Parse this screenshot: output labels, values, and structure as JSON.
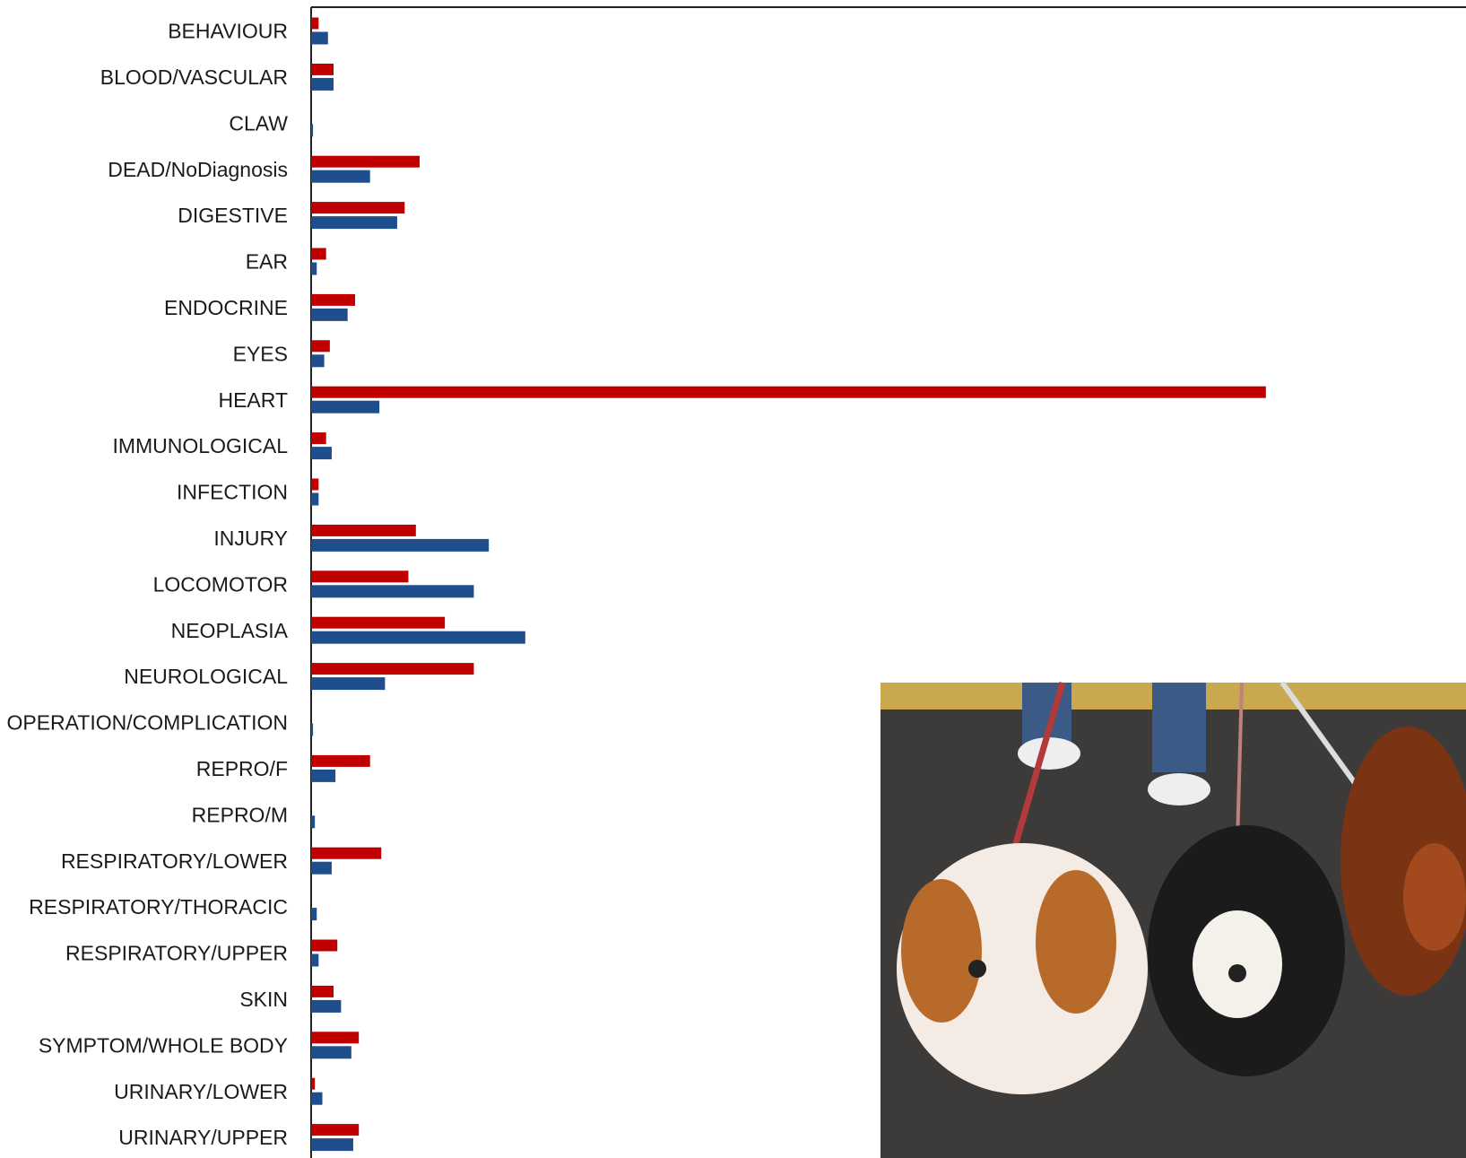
{
  "chart_data": {
    "type": "bar",
    "orientation": "horizontal",
    "categories": [
      "BEHAVIOUR",
      "BLOOD/VASCULAR",
      "CLAW",
      "DEAD/NoDiagnosis",
      "DIGESTIVE",
      "EAR",
      "ENDOCRINE",
      "EYES",
      "HEART",
      "IMMUNOLOGICAL",
      "INFECTION",
      "INJURY",
      "LOCOMOTOR",
      "NEOPLASIA",
      "NEUROLOGICAL",
      "OPERATION/COMPLICATION",
      "REPRO/F",
      "REPRO/M",
      "RESPIRATORY/LOWER",
      "RESPIRATORY/THORACIC",
      "RESPIRATORY/UPPER",
      "SKIN",
      "SYMPTOM/WHOLE BODY",
      "URINARY/LOWER",
      "URINARY/UPPER"
    ],
    "series": [
      {
        "color": "#c00000",
        "values": [
          8,
          24,
          0,
          116,
          100,
          16,
          47,
          20,
          1021,
          16,
          8,
          112,
          104,
          143,
          174,
          0,
          63,
          0,
          75,
          0,
          28,
          24,
          51,
          4,
          51
        ]
      },
      {
        "color": "#1f4e8c",
        "values": [
          18,
          24,
          2,
          63,
          92,
          6,
          39,
          14,
          73,
          22,
          8,
          190,
          174,
          229,
          79,
          2,
          26,
          4,
          22,
          6,
          8,
          32,
          43,
          12,
          45
        ]
      }
    ],
    "xlim": [
      0,
      1235
    ]
  }
}
